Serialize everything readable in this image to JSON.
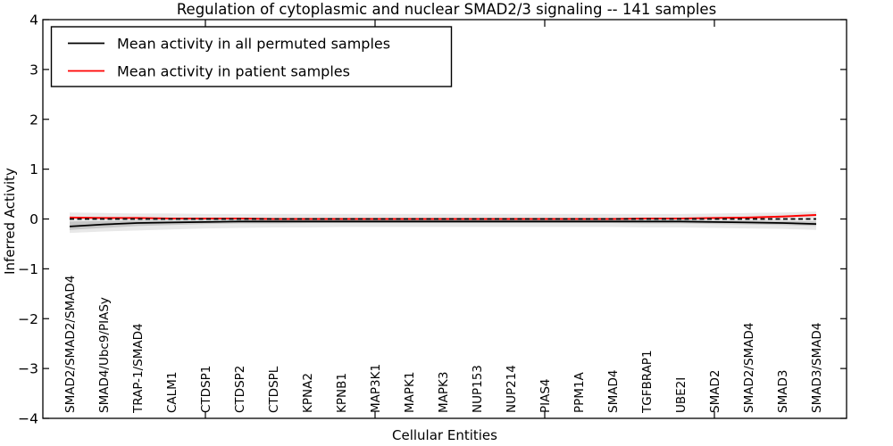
{
  "chart_data": {
    "type": "line",
    "title": "Regulation of cytoplasmic and nuclear SMAD2/3 signaling -- 141 samples",
    "xlabel": "Cellular Entities",
    "ylabel": "Inferred Activity",
    "ylim": [
      -4,
      4
    ],
    "yticks": [
      4,
      3,
      2,
      1,
      0,
      -1,
      -2,
      -3,
      -4
    ],
    "x_major_tick_indices": [
      4,
      9,
      14,
      19
    ],
    "grid": false,
    "legend_position": "upper left",
    "categories": [
      "SMAD2/SMAD2/SMAD4",
      "SMAD4/Ubc9/PIASy",
      "TRAP-1/SMAD4",
      "CALM1",
      "CTDSP1",
      "CTDSP2",
      "CTDSPL",
      "KPNA2",
      "KPNB1",
      "MAP3K1",
      "MAPK1",
      "MAPK3",
      "NUP153",
      "NUP214",
      "PIAS4",
      "PPM1A",
      "SMAD4",
      "TGFBRAP1",
      "UBE2I",
      "SMAD2",
      "SMAD2/SMAD4",
      "SMAD3",
      "SMAD3/SMAD4"
    ],
    "series": [
      {
        "name": "Mean activity in all permuted samples",
        "color": "#000000",
        "style": "solid",
        "width": 1.8,
        "values": [
          -0.15,
          -0.11,
          -0.08,
          -0.07,
          -0.06,
          -0.05,
          -0.05,
          -0.05,
          -0.05,
          -0.05,
          -0.05,
          -0.05,
          -0.05,
          -0.05,
          -0.05,
          -0.05,
          -0.05,
          -0.05,
          -0.05,
          -0.06,
          -0.07,
          -0.08,
          -0.1
        ]
      },
      {
        "name": "Mean activity in patient samples",
        "color": "#ff0000",
        "style": "solid",
        "width": 2,
        "values": [
          0.03,
          0.02,
          0.02,
          0.01,
          0.01,
          0.01,
          0.0,
          0.0,
          0.0,
          0.0,
          0.0,
          0.0,
          0.0,
          0.0,
          0.0,
          0.0,
          0.0,
          0.01,
          0.01,
          0.02,
          0.03,
          0.05,
          0.08
        ]
      }
    ],
    "reference_line": {
      "name": "zero-baseline",
      "y": 0,
      "color": "#000000",
      "style": "dashed",
      "width": 1.8
    },
    "bands": [
      {
        "name": "permuted-activity-outer-band",
        "color": "#e8e8e8",
        "upper": [
          0.13,
          0.12,
          0.11,
          0.11,
          0.1,
          0.1,
          0.1,
          0.1,
          0.1,
          0.1,
          0.1,
          0.1,
          0.1,
          0.1,
          0.1,
          0.1,
          0.1,
          0.1,
          0.1,
          0.11,
          0.12,
          0.13,
          0.15
        ],
        "lower": [
          -0.28,
          -0.25,
          -0.23,
          -0.21,
          -0.19,
          -0.18,
          -0.17,
          -0.17,
          -0.16,
          -0.16,
          -0.16,
          -0.16,
          -0.16,
          -0.16,
          -0.16,
          -0.16,
          -0.16,
          -0.17,
          -0.17,
          -0.18,
          -0.19,
          -0.2,
          -0.22
        ]
      },
      {
        "name": "permuted-activity-inner-band",
        "color": "#c6c6c6",
        "upper": [
          -0.05,
          -0.04,
          -0.03,
          -0.03,
          -0.02,
          -0.02,
          -0.02,
          -0.02,
          -0.02,
          -0.02,
          -0.02,
          -0.02,
          -0.02,
          -0.02,
          -0.02,
          -0.02,
          -0.02,
          -0.02,
          -0.02,
          -0.03,
          -0.03,
          -0.04,
          -0.05
        ],
        "lower": [
          -0.22,
          -0.18,
          -0.14,
          -0.12,
          -0.1,
          -0.09,
          -0.09,
          -0.08,
          -0.08,
          -0.08,
          -0.08,
          -0.08,
          -0.08,
          -0.08,
          -0.08,
          -0.08,
          -0.08,
          -0.09,
          -0.09,
          -0.1,
          -0.11,
          -0.12,
          -0.14
        ]
      }
    ]
  },
  "colors": {
    "frame": "#000000",
    "background": "#ffffff",
    "patient_line": "#ff0000",
    "permuted_line": "#000000"
  }
}
